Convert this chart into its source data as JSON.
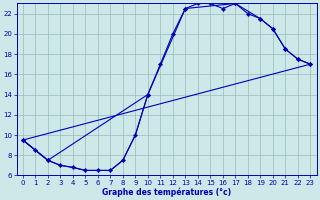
{
  "xlabel": "Graphe des températures (°c)",
  "xlim": [
    -0.5,
    23.5
  ],
  "ylim": [
    6,
    23
  ],
  "yticks": [
    6,
    8,
    10,
    12,
    14,
    16,
    18,
    20,
    22
  ],
  "xticks": [
    0,
    1,
    2,
    3,
    4,
    5,
    6,
    7,
    8,
    9,
    10,
    11,
    12,
    13,
    14,
    15,
    16,
    17,
    18,
    19,
    20,
    21,
    22,
    23
  ],
  "bg_color": "#cce8e8",
  "line_color": "#0000bb",
  "grid_color": "#99bbbb",
  "line1_x": [
    0,
    1,
    2,
    3,
    4,
    5,
    6,
    7,
    8,
    9,
    10,
    11,
    12,
    13,
    14,
    15,
    16,
    17,
    18,
    19,
    20,
    21,
    22,
    23
  ],
  "line1_y": [
    9.5,
    8.5,
    7.5,
    7.0,
    6.8,
    6.5,
    6.5,
    6.5,
    7.5,
    10.0,
    14.0,
    17.0,
    20.0,
    22.5,
    23.0,
    23.0,
    22.5,
    23.0,
    22.0,
    21.5,
    20.5,
    18.5,
    17.5,
    17.0
  ],
  "line2_x": [
    0,
    2,
    10,
    13,
    17,
    19,
    20,
    21,
    22,
    23
  ],
  "line2_y": [
    9.5,
    7.5,
    14.0,
    22.5,
    23.0,
    21.5,
    20.5,
    18.5,
    17.5,
    17.0
  ],
  "line3_x": [
    0,
    23
  ],
  "line3_y": [
    9.5,
    17.0
  ],
  "line4_x": [
    0,
    2,
    3,
    4,
    5,
    6,
    7,
    8,
    9,
    10
  ],
  "line4_y": [
    9.5,
    7.5,
    7.0,
    6.8,
    6.5,
    6.5,
    6.5,
    7.5,
    10.0,
    14.0
  ]
}
